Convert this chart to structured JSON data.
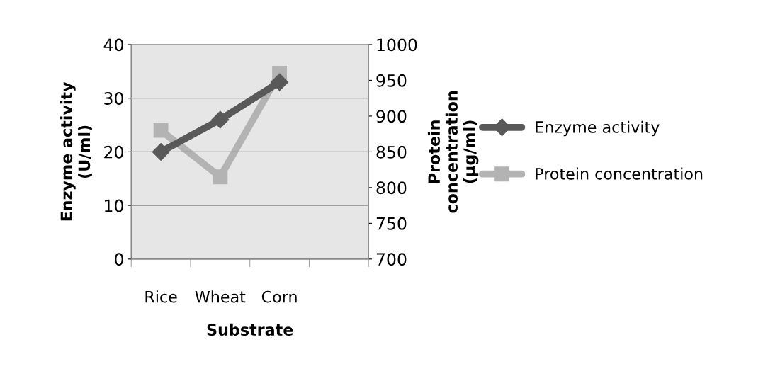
{
  "chart_data": {
    "type": "line",
    "xlabel": "Substrate",
    "ylabel": "Enzyme activity\n(U/ml)",
    "y2label": "Protein\nconcentration\n(µg/ml)",
    "categories": [
      "Rice",
      "Wheat",
      "Corn",
      null
    ],
    "series": [
      {
        "name": "Enzyme activity",
        "color": "#595959",
        "values": [
          20,
          26,
          33,
          null
        ],
        "marker": "diamond"
      },
      {
        "name": "Protein concentration",
        "color": "#b3b3b3",
        "values": [
          880,
          815,
          960,
          null
        ],
        "axis": "y2",
        "marker": "square"
      }
    ],
    "ylim": [
      0,
      40
    ],
    "yticks": [
      0,
      10,
      20,
      30,
      40
    ],
    "y2lim": [
      700,
      1000
    ],
    "y2ticks": [
      700,
      750,
      800,
      850,
      900,
      950,
      1000
    ],
    "grid": "y",
    "legend": "right",
    "line_style": "solid"
  }
}
